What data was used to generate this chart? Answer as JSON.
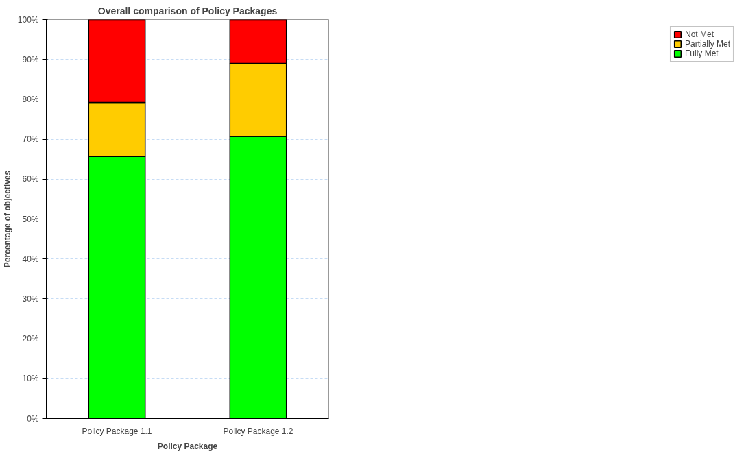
{
  "chart_data": {
    "type": "bar",
    "stacked": true,
    "title": "Overall comparison of Policy Packages",
    "xlabel": "Policy Package",
    "ylabel": "Percentage of objectives",
    "categories": [
      "Policy Package 1.1",
      "Policy Package 1.2"
    ],
    "series": [
      {
        "name": "Fully Met",
        "color": "#00ff00",
        "values": [
          65.7,
          70.7
        ]
      },
      {
        "name": "Partially Met",
        "color": "#ffcc00",
        "values": [
          13.5,
          18.3
        ]
      },
      {
        "name": "Not Met",
        "color": "#ff0000",
        "values": [
          20.8,
          11.0
        ]
      }
    ],
    "ylim": [
      0,
      100
    ],
    "yticks": [
      {
        "value": 0,
        "label": "0%"
      },
      {
        "value": 10,
        "label": "10%"
      },
      {
        "value": 20,
        "label": "20%"
      },
      {
        "value": 30,
        "label": "30%"
      },
      {
        "value": 40,
        "label": "40%"
      },
      {
        "value": 50,
        "label": "50%"
      },
      {
        "value": 60,
        "label": "60%"
      },
      {
        "value": 70,
        "label": "70%"
      },
      {
        "value": 80,
        "label": "80%"
      },
      {
        "value": 90,
        "label": "90%"
      },
      {
        "value": 100,
        "label": "100%"
      }
    ],
    "grid": "y",
    "legend": "top right"
  }
}
